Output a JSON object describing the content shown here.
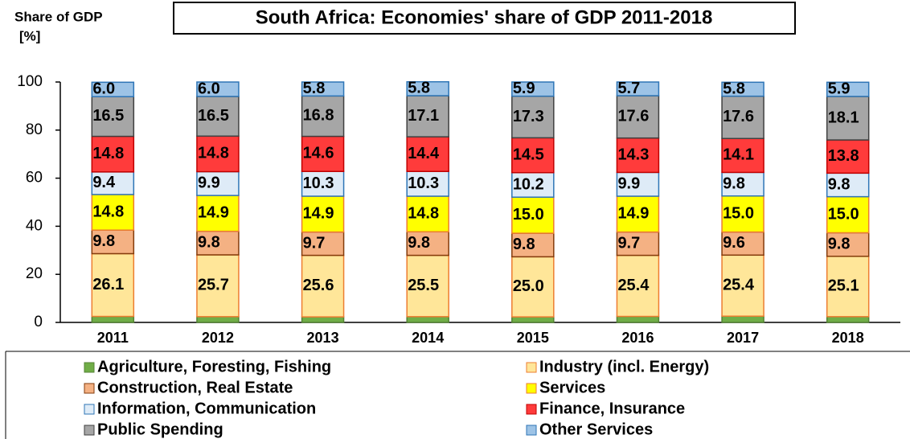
{
  "chart_data": {
    "type": "stacked_bar",
    "title": "South Africa: Economies' share of GDP 2011-2018",
    "ylabel": [
      "Share of GDP",
      "[%]"
    ],
    "categories": [
      "2011",
      "2012",
      "2013",
      "2014",
      "2015",
      "2016",
      "2017",
      "2018"
    ],
    "ylim": [
      0,
      100
    ],
    "yticks": [
      0,
      20,
      40,
      60,
      80,
      100
    ],
    "series": [
      {
        "name": "Agriculture, Foresting, Fishing",
        "color": "#70ad47",
        "border": "#548235",
        "values": [
          2.5,
          2.4,
          2.3,
          2.4,
          2.3,
          2.5,
          2.6,
          2.4
        ],
        "value_labels": [
          "2.5",
          "2.4",
          "2.3",
          "2.4",
          "2.3",
          "2.5",
          "2.6",
          "2.4"
        ]
      },
      {
        "name": "Industry (incl. Energy)",
        "color": "#ffe699",
        "border": "#ed7d31",
        "values": [
          26.1,
          25.7,
          25.6,
          25.5,
          25.0,
          25.4,
          25.4,
          25.1
        ],
        "value_labels": [
          "26.1",
          "25.7",
          "25.6",
          "25.5",
          "25.0",
          "25.4",
          "25.4",
          "25.1"
        ]
      },
      {
        "name": "Construction, Real Estate",
        "color": "#f4b183",
        "border": "#843c0c",
        "values": [
          9.8,
          9.8,
          9.7,
          9.8,
          9.8,
          9.7,
          9.6,
          9.8
        ],
        "value_labels": [
          "9.8",
          "9.8",
          "9.7",
          "9.8",
          "9.8",
          "9.7",
          "9.6",
          "9.8"
        ]
      },
      {
        "name": "Services",
        "color": "#ffff00",
        "border": "#ed7d31",
        "values": [
          14.8,
          14.9,
          14.9,
          14.8,
          15.0,
          14.9,
          15.0,
          15.0
        ],
        "value_labels": [
          "14.8",
          "14.9",
          "14.9",
          "14.8",
          "15.0",
          "14.9",
          "15.0",
          "15.0"
        ]
      },
      {
        "name": "Information, Communication",
        "color": "#deebf7",
        "border": "#2e75b6",
        "values": [
          9.4,
          9.9,
          10.3,
          10.3,
          10.2,
          9.9,
          9.8,
          9.8
        ],
        "value_labels": [
          "9.4",
          "9.9",
          "10.3",
          "10.3",
          "10.2",
          "9.9",
          "9.8",
          "9.8"
        ]
      },
      {
        "name": "Finance, Insurance",
        "color": "#ff3b3b",
        "border": "#c00000",
        "values": [
          14.8,
          14.8,
          14.6,
          14.4,
          14.5,
          14.3,
          14.1,
          13.8
        ],
        "value_labels": [
          "14.8",
          "14.8",
          "14.6",
          "14.4",
          "14.5",
          "14.3",
          "14.1",
          "13.8"
        ]
      },
      {
        "name": "Public Spending",
        "color": "#a6a6a6",
        "border": "#404040",
        "values": [
          16.5,
          16.5,
          16.8,
          17.1,
          17.3,
          17.6,
          17.6,
          18.1
        ],
        "value_labels": [
          "16.5",
          "16.5",
          "16.8",
          "17.1",
          "17.3",
          "17.6",
          "17.6",
          "18.1"
        ]
      },
      {
        "name": "Other Services",
        "color": "#9dc3e6",
        "border": "#2e75b6",
        "values": [
          6.0,
          6.0,
          5.8,
          5.8,
          5.9,
          5.7,
          5.8,
          5.9
        ],
        "value_labels": [
          "6.0",
          "6.0",
          "5.8",
          "5.8",
          "5.9",
          "5.7",
          "5.8",
          "5.9"
        ]
      }
    ]
  }
}
